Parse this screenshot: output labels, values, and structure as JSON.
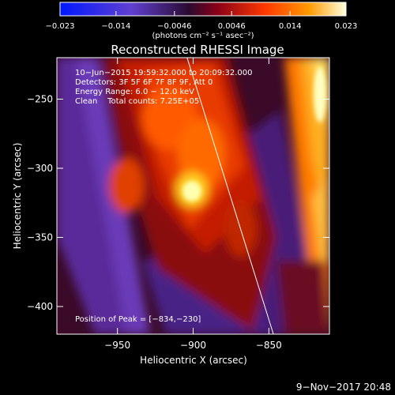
{
  "chart_data": {
    "type": "heatmap",
    "title": "Reconstructed RHESSI Image",
    "xlabel": "Heliocentric X (arcsec)",
    "ylabel": "Heliocentric Y (arcsec)",
    "xlim": [
      -990,
      -810
    ],
    "ylim": [
      -420,
      -220
    ],
    "x_ticks": [
      -950,
      -900,
      -850
    ],
    "x_tick_labels": [
      "−950",
      "−900",
      "−850"
    ],
    "y_ticks": [
      -250,
      -300,
      -350,
      -400
    ],
    "y_tick_labels": [
      "−250",
      "−300",
      "−350",
      "−400"
    ],
    "colorbar": {
      "range": [
        -0.023,
        0.023
      ],
      "ticks": [
        -0.023,
        -0.014,
        -0.0046,
        0.0046,
        0.014,
        0.023
      ],
      "tick_labels": [
        "−0.023",
        "−0.014",
        "−0.0046",
        "0.0046",
        "0.014",
        "0.023"
      ],
      "units": "(photons cm⁻² s⁻¹ asec⁻²)",
      "colors": [
        "#0018ff",
        "#5a30d8",
        "#2a1040",
        "#8a0018",
        "#ff3a00",
        "#ff9a00",
        "#ffffe0"
      ]
    },
    "annotations": {
      "time_range": "10−Jun−2015 19:59:32.000 to 20:09:32.000",
      "detectors": "Detectors: 3F 5F 6F 7F 8F 9F, Att 0",
      "energy": "Energy Range: 6.0 − 12.0 keV",
      "clean": "Clean    Total counts: 7.25E+05",
      "peak": "Position of Peak = [−834,−230]"
    },
    "peak_position": [
      -834,
      -230
    ],
    "limb_line": [
      [
        -904,
        -220
      ],
      [
        -847,
        -420
      ]
    ]
  },
  "footer_date": "9−Nov−2017 20:48"
}
